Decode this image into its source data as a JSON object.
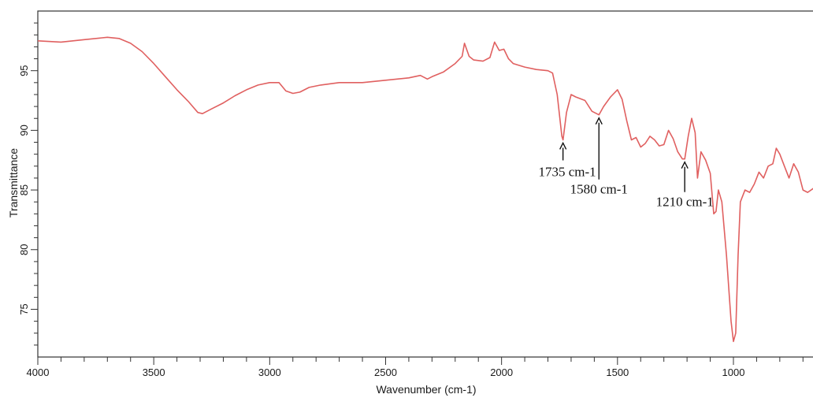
{
  "chart_data": {
    "type": "line",
    "title": "",
    "xlabel": "Wavenumber (cm-1)",
    "ylabel": "Transmittance",
    "xlim": [
      4000,
      650
    ],
    "ylim": [
      71,
      100
    ],
    "x_reversed": true,
    "grid": false,
    "x_ticks": [
      "4000",
      "3500",
      "3000",
      "2500",
      "2000",
      "1500",
      "1000"
    ],
    "x_tick_values": [
      4000,
      3500,
      3000,
      2500,
      2000,
      1500,
      1000
    ],
    "y_ticks": [
      "75",
      "80",
      "85",
      "90",
      "95"
    ],
    "y_tick_values": [
      75,
      80,
      85,
      90,
      95
    ],
    "series": [
      {
        "color": "#e06060",
        "points": [
          [
            4000,
            97.5
          ],
          [
            3900,
            97.4
          ],
          [
            3800,
            97.6
          ],
          [
            3700,
            97.8
          ],
          [
            3650,
            97.7
          ],
          [
            3600,
            97.3
          ],
          [
            3550,
            96.6
          ],
          [
            3500,
            95.6
          ],
          [
            3450,
            94.5
          ],
          [
            3400,
            93.4
          ],
          [
            3350,
            92.4
          ],
          [
            3310,
            91.5
          ],
          [
            3290,
            91.4
          ],
          [
            3250,
            91.8
          ],
          [
            3200,
            92.3
          ],
          [
            3150,
            92.9
          ],
          [
            3100,
            93.4
          ],
          [
            3050,
            93.8
          ],
          [
            3000,
            94.0
          ],
          [
            2960,
            94.0
          ],
          [
            2930,
            93.3
          ],
          [
            2900,
            93.1
          ],
          [
            2870,
            93.2
          ],
          [
            2830,
            93.6
          ],
          [
            2780,
            93.8
          ],
          [
            2700,
            94.0
          ],
          [
            2600,
            94.0
          ],
          [
            2500,
            94.2
          ],
          [
            2400,
            94.4
          ],
          [
            2350,
            94.6
          ],
          [
            2320,
            94.3
          ],
          [
            2300,
            94.5
          ],
          [
            2250,
            94.9
          ],
          [
            2200,
            95.6
          ],
          [
            2170,
            96.2
          ],
          [
            2160,
            97.3
          ],
          [
            2140,
            96.2
          ],
          [
            2120,
            95.9
          ],
          [
            2080,
            95.8
          ],
          [
            2050,
            96.1
          ],
          [
            2030,
            97.4
          ],
          [
            2010,
            96.7
          ],
          [
            1990,
            96.8
          ],
          [
            1970,
            96.0
          ],
          [
            1950,
            95.6
          ],
          [
            1900,
            95.3
          ],
          [
            1850,
            95.1
          ],
          [
            1800,
            95.0
          ],
          [
            1780,
            94.8
          ],
          [
            1760,
            93.0
          ],
          [
            1740,
            89.5
          ],
          [
            1735,
            89.2
          ],
          [
            1720,
            91.5
          ],
          [
            1700,
            93.0
          ],
          [
            1680,
            92.8
          ],
          [
            1640,
            92.5
          ],
          [
            1610,
            91.6
          ],
          [
            1580,
            91.3
          ],
          [
            1560,
            92.0
          ],
          [
            1530,
            92.8
          ],
          [
            1500,
            93.4
          ],
          [
            1480,
            92.6
          ],
          [
            1460,
            90.8
          ],
          [
            1440,
            89.2
          ],
          [
            1420,
            89.4
          ],
          [
            1400,
            88.6
          ],
          [
            1380,
            88.9
          ],
          [
            1360,
            89.5
          ],
          [
            1340,
            89.2
          ],
          [
            1320,
            88.7
          ],
          [
            1300,
            88.8
          ],
          [
            1280,
            90.0
          ],
          [
            1260,
            89.3
          ],
          [
            1240,
            88.2
          ],
          [
            1220,
            87.6
          ],
          [
            1210,
            87.6
          ],
          [
            1195,
            89.5
          ],
          [
            1180,
            91.0
          ],
          [
            1165,
            89.8
          ],
          [
            1155,
            86.0
          ],
          [
            1140,
            88.2
          ],
          [
            1120,
            87.5
          ],
          [
            1100,
            86.4
          ],
          [
            1085,
            83.0
          ],
          [
            1075,
            83.2
          ],
          [
            1065,
            85.0
          ],
          [
            1050,
            84.0
          ],
          [
            1030,
            79.5
          ],
          [
            1010,
            74.0
          ],
          [
            1000,
            72.3
          ],
          [
            990,
            73.0
          ],
          [
            980,
            79.5
          ],
          [
            970,
            84.0
          ],
          [
            950,
            85.0
          ],
          [
            930,
            84.8
          ],
          [
            910,
            85.5
          ],
          [
            890,
            86.5
          ],
          [
            870,
            86.0
          ],
          [
            850,
            87.0
          ],
          [
            830,
            87.2
          ],
          [
            815,
            88.5
          ],
          [
            800,
            88.0
          ],
          [
            780,
            87.0
          ],
          [
            760,
            86.0
          ],
          [
            740,
            87.2
          ],
          [
            720,
            86.5
          ],
          [
            700,
            85.0
          ],
          [
            680,
            84.8
          ],
          [
            650,
            85.2
          ]
        ]
      }
    ],
    "annotations": [
      {
        "text": "1735 cm-1",
        "x": 1735,
        "tip_y": 89.2
      },
      {
        "text": "1580 cm-1",
        "x": 1580,
        "tip_y": 91.3
      },
      {
        "text": "1210 cm-1",
        "x": 1210,
        "tip_y": 87.6
      }
    ]
  }
}
